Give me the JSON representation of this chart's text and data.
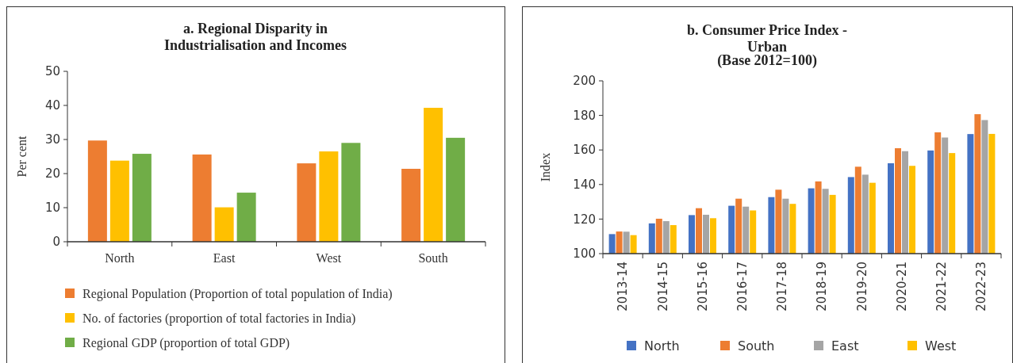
{
  "chart_data": [
    {
      "type": "bar",
      "title": "a. Regional Disparity in Industrialisation and Incomes",
      "ylabel": "Per cent",
      "categories": [
        "North",
        "East",
        "West",
        "South"
      ],
      "series": [
        {
          "name": "Regional Population (Proportion of total population of India)",
          "color": "#ed7d31",
          "values": [
            29.7,
            25.6,
            23.0,
            21.4
          ]
        },
        {
          "name": "No. of factories (proportion of total factories in India)",
          "color": "#ffc000",
          "values": [
            23.8,
            10.1,
            26.5,
            39.3
          ]
        },
        {
          "name": "Regional GDP (proportion of total GDP)",
          "color": "#70ad47",
          "values": [
            25.8,
            14.4,
            29.0,
            30.5
          ]
        }
      ],
      "ylim": [
        0,
        50
      ],
      "yticks": [
        0,
        10,
        20,
        30,
        40,
        50
      ],
      "legend": "bottom"
    },
    {
      "type": "bar",
      "title": "b. Consumer Price Index - Urban",
      "subtitle": "(Base 2012=100)",
      "ylabel": "Index",
      "categories": [
        "2013-14",
        "2014-15",
        "2015-16",
        "2016-17",
        "2017-18",
        "2018-19",
        "2019-20",
        "2020-21",
        "2021-22",
        "2022-23"
      ],
      "series": [
        {
          "name": "North",
          "color": "#4472c4",
          "values": [
            111.3,
            117.5,
            122.3,
            127.7,
            132.7,
            137.8,
            144.3,
            152.3,
            159.7,
            169.2
          ]
        },
        {
          "name": "South",
          "color": "#ed7d31",
          "values": [
            112.8,
            120.2,
            126.3,
            131.8,
            137.0,
            141.8,
            150.3,
            161.0,
            170.2,
            180.7
          ]
        },
        {
          "name": "East",
          "color": "#a5a5a5",
          "values": [
            112.7,
            118.8,
            122.5,
            127.2,
            131.8,
            137.5,
            145.7,
            159.3,
            167.2,
            177.3
          ]
        },
        {
          "name": "West",
          "color": "#ffc000",
          "values": [
            110.7,
            116.5,
            120.5,
            125.0,
            128.8,
            134.0,
            141.0,
            150.8,
            158.2,
            169.3
          ]
        }
      ],
      "ylim": [
        100,
        200
      ],
      "yticks": [
        100,
        120,
        140,
        160,
        180,
        200
      ],
      "legend": "bottom"
    }
  ]
}
